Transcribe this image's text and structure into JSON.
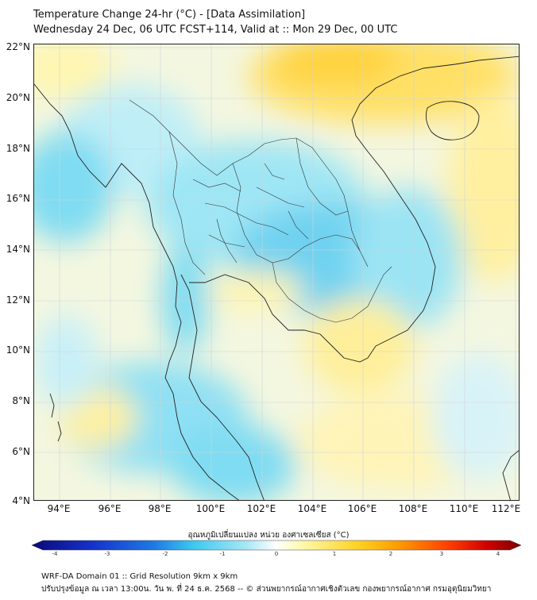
{
  "header": {
    "title_line_1": "Temperature Change 24-hr (°C) - [Data Assimilation]",
    "title_line_2": "Wednesday 24 Dec, 06 UTC FCST+114, Valid at :: Mon 29 Dec, 00 UTC"
  },
  "map": {
    "lat_labels": [
      "22°N",
      "20°N",
      "18°N",
      "16°N",
      "14°N",
      "12°N",
      "10°N",
      "8°N",
      "6°N",
      "4°N"
    ],
    "lon_labels": [
      "94°E",
      "96°E",
      "98°E",
      "100°E",
      "102°E",
      "104°E",
      "106°E",
      "108°E",
      "110°E",
      "112°E"
    ],
    "lat_range": [
      4,
      22
    ],
    "lon_range": [
      93,
      112.2
    ]
  },
  "colorbar": {
    "title": "อุณหภูมิเปลี่ยนแปลง หน่วย องศาเซลเซียส (°C)",
    "ticks": [
      "-4",
      "-3",
      "-2",
      "-1",
      "0",
      "1",
      "2",
      "3",
      "4"
    ],
    "min": -4,
    "max": 4,
    "colors": [
      "#0a0a7a",
      "#1530c8",
      "#1e7ae6",
      "#3cc8f0",
      "#a8e8f5",
      "#ffffff",
      "#fff7a0",
      "#ffd020",
      "#ff9a00",
      "#ff4000",
      "#d00000",
      "#7a0000"
    ]
  },
  "footer": {
    "line_1": "WRF-DA Domain 01 :: Grid Resolution 9km x 9km",
    "line_2": "ปรับปรุงข้อมูล ณ เวลา 13:00น. วัน พ. ที่ 24 ธ.ค. 2568 -- © ส่วนพยากรณ์อากาศเชิงตัวเลข กองพยากรณ์อากาศ กรมอุตุนิยมวิทยา"
  }
}
